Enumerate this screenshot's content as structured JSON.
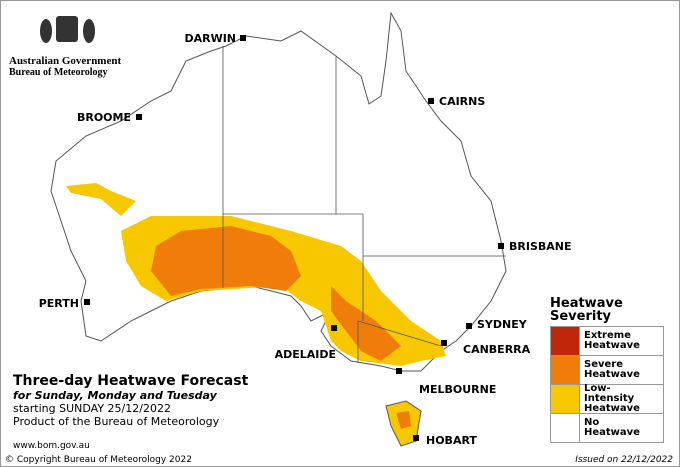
{
  "logo": {
    "line1": "Australian Government",
    "line2": "Bureau of Meteorology"
  },
  "cities": [
    "DARWIN",
    "CAIRNS",
    "BROOME",
    "BRISBANE",
    "PERTH",
    "SYDNEY",
    "CANBERRA",
    "ADELAIDE",
    "MELBOURNE",
    "HOBART"
  ],
  "title": "Three-day Heatwave Forecast",
  "subtitle": "for Sunday, Monday and Tuesday",
  "starting": "starting SUNDAY 25/12/2022",
  "product": "Product of the Bureau of Meteorology",
  "website": "www.bom.gov.au",
  "copyright": "© Copyright Bureau of Meteorology 2022",
  "issued": "Issued on 22/12/2022",
  "legend": {
    "title": "Heatwave Severity",
    "items": [
      {
        "label": "Extreme Heatwave",
        "color": "#c0270a"
      },
      {
        "label": "Severe Heatwave",
        "color": "#f07d0a"
      },
      {
        "label": "Low-Intensity Heatwave",
        "color": "#f7c800"
      },
      {
        "label": "No Heatwave",
        "color": "#ffffff"
      }
    ]
  }
}
